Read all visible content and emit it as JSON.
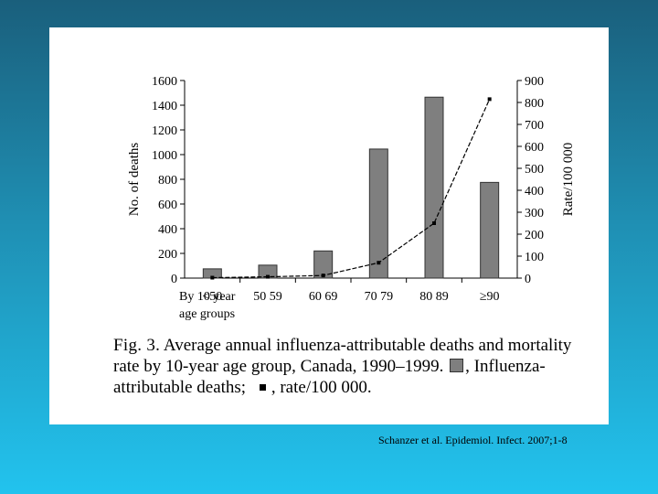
{
  "chart_data": {
    "type": "bar",
    "title": "",
    "xlabel": "By 10 year age groups",
    "categories": [
      "<50",
      "50 59",
      "60 69",
      "70 79",
      "80 89",
      "≥90"
    ],
    "series": [
      {
        "name": "No. of deaths",
        "kind": "bar",
        "axis": "left",
        "color": "#7f7f7f",
        "values": [
          75,
          105,
          220,
          1045,
          1465,
          775
        ]
      },
      {
        "name": "Rate/100 000",
        "kind": "line",
        "axis": "right",
        "color": "#000000",
        "values": [
          2,
          6,
          12,
          70,
          250,
          815
        ]
      }
    ],
    "y_left": {
      "label": "No. of deaths",
      "lim": [
        0,
        1600
      ],
      "ticks": [
        "0",
        "200",
        "400",
        "600",
        "800",
        "1000",
        "1200",
        "1400",
        "1600"
      ]
    },
    "y_right": {
      "label": "Rate/100 000",
      "lim": [
        0,
        900
      ],
      "ticks": [
        "0",
        "100",
        "200",
        "300",
        "400",
        "500",
        "600",
        "700",
        "800",
        "900"
      ]
    },
    "xlabel_line1": "By 10 year",
    "xlabel_line2": "age groups"
  },
  "caption": {
    "fig_label": "Fig. 3.",
    "text_part1": "Average annual influenza-attributable deaths and mortality rate by 10-year age group, Canada, 1990–1999.",
    "text_part2": ", Influenza-attributable deaths;",
    "text_part3": ", rate/100 000."
  },
  "citation": "Schanzer et al. Epidemiol. Infect. 2007;1-8"
}
